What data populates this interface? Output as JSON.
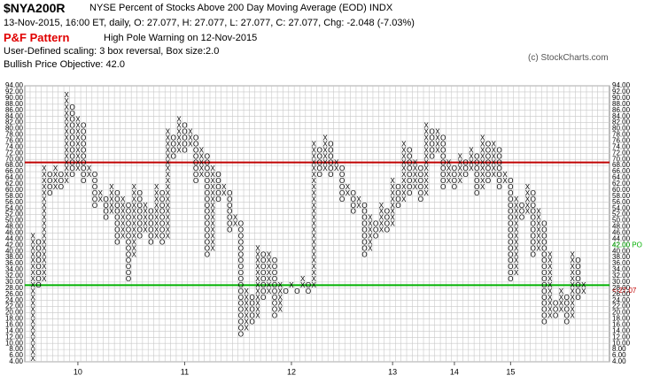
{
  "header": {
    "symbol": "$NYA200R",
    "name": "NYSE Percent of Stocks Above 200 Day Moving Average (EOD)  INDX",
    "quote": "13-Nov-2015, 16:00 ET, daily, O: 27.077, H: 27.077, L: 27.077, C: 27.077, Chg: -2.048 (-7.03%)",
    "pattern_label": "P&F Pattern",
    "pattern": "High Pole Warning on 12-Nov-2015",
    "scaling": "User-Defined scaling: 3 box reversal, Box size:2.0",
    "objective": "Bullish Price Objective: 42.0",
    "credit": "(c) StockCharts.com"
  },
  "chart_data": {
    "type": "pnf",
    "box_size": 2,
    "ylim": [
      4,
      94
    ],
    "yticks": [
      {
        "value": 4,
        "label": "4.00"
      },
      {
        "value": 6,
        "label": "6.00"
      },
      {
        "value": 8,
        "label": "8.00"
      },
      {
        "value": 10,
        "label": "10.00"
      },
      {
        "value": 12,
        "label": "12.00"
      },
      {
        "value": 14,
        "label": "14.00"
      },
      {
        "value": 16,
        "label": "16.00"
      },
      {
        "value": 18,
        "label": "18.00"
      },
      {
        "value": 20,
        "label": "20.00"
      },
      {
        "value": 22,
        "label": "22.00"
      },
      {
        "value": 24,
        "label": "24.00"
      },
      {
        "value": 26,
        "label": "26.00"
      },
      {
        "value": 28,
        "label": "28.00"
      },
      {
        "value": 30,
        "label": "30.00"
      },
      {
        "value": 32,
        "label": "32.00"
      },
      {
        "value": 34,
        "label": "34.00"
      },
      {
        "value": 36,
        "label": "36.00"
      },
      {
        "value": 38,
        "label": "38.00"
      },
      {
        "value": 40,
        "label": "40.00"
      },
      {
        "value": 42,
        "label": "42.00"
      },
      {
        "value": 44,
        "label": "44.00"
      },
      {
        "value": 46,
        "label": "46.00"
      },
      {
        "value": 48,
        "label": "48.00"
      },
      {
        "value": 50,
        "label": "50.00"
      },
      {
        "value": 52,
        "label": "52.00"
      },
      {
        "value": 54,
        "label": "54.00"
      },
      {
        "value": 56,
        "label": "56.00"
      },
      {
        "value": 58,
        "label": "58.00"
      },
      {
        "value": 60,
        "label": "60.00"
      },
      {
        "value": 62,
        "label": "62.00"
      },
      {
        "value": 64,
        "label": "64.00"
      },
      {
        "value": 66,
        "label": "66.00"
      },
      {
        "value": 68,
        "label": "68.00"
      },
      {
        "value": 70,
        "label": "70.00"
      },
      {
        "value": 72,
        "label": "72.00"
      },
      {
        "value": 74,
        "label": "74.00"
      },
      {
        "value": 76,
        "label": "76.00"
      },
      {
        "value": 78,
        "label": "78.00"
      },
      {
        "value": 80,
        "label": "80.00"
      },
      {
        "value": 82,
        "label": "82.00"
      },
      {
        "value": 84,
        "label": "84.00"
      },
      {
        "value": 86,
        "label": "86.00"
      },
      {
        "value": 88,
        "label": "88.00"
      },
      {
        "value": 90,
        "label": "90.00"
      },
      {
        "value": 92,
        "label": "92.00"
      },
      {
        "value": 94,
        "label": "94.00"
      }
    ],
    "xticks": [
      {
        "value": 8,
        "label": "10"
      },
      {
        "value": 27,
        "label": "11"
      },
      {
        "value": 46,
        "label": "12"
      },
      {
        "value": 64,
        "label": "13"
      },
      {
        "value": 75,
        "label": "14"
      },
      {
        "value": 85,
        "label": "15"
      }
    ],
    "grid": true,
    "columns": [
      {
        "type": "X",
        "low": 4,
        "high": 46
      },
      {
        "type": "O",
        "low": 28,
        "high": 44
      },
      {
        "type": "X",
        "low": 30,
        "high": 68
      },
      {
        "type": "O",
        "low": 58,
        "high": 66
      },
      {
        "type": "X",
        "low": 60,
        "high": 68
      },
      {
        "type": "O",
        "low": 60,
        "high": 66
      },
      {
        "type": "X",
        "low": 62,
        "high": 92
      },
      {
        "type": "O",
        "low": 64,
        "high": 88
      },
      {
        "type": "X",
        "low": 66,
        "high": 84
      },
      {
        "type": "O",
        "low": 62,
        "high": 82
      },
      {
        "type": "X",
        "low": 64,
        "high": 68
      },
      {
        "type": "O",
        "low": 54,
        "high": 66
      },
      {
        "type": "X",
        "low": 56,
        "high": 60
      },
      {
        "type": "O",
        "low": 50,
        "high": 58
      },
      {
        "type": "X",
        "low": 52,
        "high": 62
      },
      {
        "type": "O",
        "low": 42,
        "high": 60
      },
      {
        "type": "X",
        "low": 44,
        "high": 58
      },
      {
        "type": "O",
        "low": 30,
        "high": 56
      },
      {
        "type": "X",
        "low": 38,
        "high": 62
      },
      {
        "type": "O",
        "low": 44,
        "high": 60
      },
      {
        "type": "X",
        "low": 46,
        "high": 56
      },
      {
        "type": "O",
        "low": 42,
        "high": 54
      },
      {
        "type": "X",
        "low": 44,
        "high": 62
      },
      {
        "type": "O",
        "low": 42,
        "high": 60
      },
      {
        "type": "X",
        "low": 44,
        "high": 80
      },
      {
        "type": "O",
        "low": 70,
        "high": 78
      },
      {
        "type": "X",
        "low": 72,
        "high": 84
      },
      {
        "type": "O",
        "low": 72,
        "high": 82
      },
      {
        "type": "X",
        "low": 74,
        "high": 80
      },
      {
        "type": "O",
        "low": 62,
        "high": 78
      },
      {
        "type": "X",
        "low": 64,
        "high": 74
      },
      {
        "type": "O",
        "low": 38,
        "high": 72
      },
      {
        "type": "X",
        "low": 40,
        "high": 68
      },
      {
        "type": "O",
        "low": 56,
        "high": 66
      },
      {
        "type": "X",
        "low": 58,
        "high": 62
      },
      {
        "type": "O",
        "low": 46,
        "high": 60
      },
      {
        "type": "X",
        "low": 48,
        "high": 52
      },
      {
        "type": "O",
        "low": 12,
        "high": 50
      },
      {
        "type": "X",
        "low": 14,
        "high": 28
      },
      {
        "type": "O",
        "low": 16,
        "high": 26
      },
      {
        "type": "X",
        "low": 18,
        "high": 42
      },
      {
        "type": "O",
        "low": 24,
        "high": 40
      },
      {
        "type": "X",
        "low": 26,
        "high": 40
      },
      {
        "type": "O",
        "low": 18,
        "high": 38
      },
      {
        "type": "X",
        "low": 20,
        "high": 30
      },
      {
        "type": "O",
        "low": 26,
        "high": 28
      },
      {
        "type": "X",
        "low": 28,
        "high": 30
      },
      {
        "type": "O",
        "low": 26,
        "high": 28
      },
      {
        "type": "X",
        "low": 28,
        "high": 32
      },
      {
        "type": "O",
        "low": 26,
        "high": 30
      },
      {
        "type": "X",
        "low": 28,
        "high": 76
      },
      {
        "type": "O",
        "low": 64,
        "high": 74
      },
      {
        "type": "X",
        "low": 66,
        "high": 78
      },
      {
        "type": "O",
        "low": 64,
        "high": 76
      },
      {
        "type": "X",
        "low": 66,
        "high": 70
      },
      {
        "type": "O",
        "low": 56,
        "high": 68
      },
      {
        "type": "X",
        "low": 58,
        "high": 62
      },
      {
        "type": "O",
        "low": 52,
        "high": 60
      },
      {
        "type": "X",
        "low": 54,
        "high": 58
      },
      {
        "type": "O",
        "low": 38,
        "high": 56
      },
      {
        "type": "X",
        "low": 40,
        "high": 52
      },
      {
        "type": "O",
        "low": 44,
        "high": 50
      },
      {
        "type": "X",
        "low": 46,
        "high": 56
      },
      {
        "type": "O",
        "low": 46,
        "high": 54
      },
      {
        "type": "X",
        "low": 48,
        "high": 64
      },
      {
        "type": "O",
        "low": 54,
        "high": 62
      },
      {
        "type": "X",
        "low": 56,
        "high": 76
      },
      {
        "type": "O",
        "low": 58,
        "high": 74
      },
      {
        "type": "X",
        "low": 60,
        "high": 70
      },
      {
        "type": "O",
        "low": 56,
        "high": 68
      },
      {
        "type": "X",
        "low": 58,
        "high": 82
      },
      {
        "type": "O",
        "low": 70,
        "high": 80
      },
      {
        "type": "X",
        "low": 72,
        "high": 80
      },
      {
        "type": "O",
        "low": 60,
        "high": 78
      },
      {
        "type": "X",
        "low": 62,
        "high": 70
      },
      {
        "type": "O",
        "low": 60,
        "high": 68
      },
      {
        "type": "X",
        "low": 62,
        "high": 72
      },
      {
        "type": "O",
        "low": 64,
        "high": 70
      },
      {
        "type": "X",
        "low": 66,
        "high": 74
      },
      {
        "type": "O",
        "low": 58,
        "high": 72
      },
      {
        "type": "X",
        "low": 60,
        "high": 78
      },
      {
        "type": "O",
        "low": 62,
        "high": 76
      },
      {
        "type": "X",
        "low": 64,
        "high": 76
      },
      {
        "type": "O",
        "low": 60,
        "high": 74
      },
      {
        "type": "X",
        "low": 62,
        "high": 66
      },
      {
        "type": "O",
        "low": 30,
        "high": 64
      },
      {
        "type": "X",
        "low": 32,
        "high": 58
      },
      {
        "type": "O",
        "low": 50,
        "high": 56
      },
      {
        "type": "X",
        "low": 52,
        "high": 62
      },
      {
        "type": "O",
        "low": 38,
        "high": 60
      },
      {
        "type": "X",
        "low": 40,
        "high": 54
      },
      {
        "type": "O",
        "low": 16,
        "high": 50
      },
      {
        "type": "X",
        "low": 18,
        "high": 40
      },
      {
        "type": "O",
        "low": 18,
        "high": 24
      },
      {
        "type": "X",
        "low": 20,
        "high": 28
      },
      {
        "type": "O",
        "low": 16,
        "high": 26
      },
      {
        "type": "X",
        "low": 18,
        "high": 40
      },
      {
        "type": "O",
        "low": 24,
        "high": 38
      },
      {
        "type": "X",
        "low": 26,
        "high": 30
      }
    ],
    "reference_lines": [
      {
        "value": 69,
        "color": "#c00000"
      },
      {
        "value": 29,
        "color": "#00b000"
      }
    ],
    "price_objective": {
      "value": 42,
      "label": "42.00 PO",
      "color": "#00b000"
    },
    "last_price": {
      "value": 27.07,
      "label": "<-27.07",
      "color": "#c00000"
    },
    "x_color": "#000000",
    "o_color": "#000000"
  }
}
